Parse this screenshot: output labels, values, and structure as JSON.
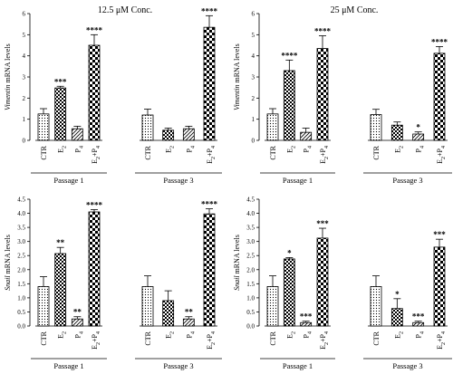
{
  "chart_data": [
    {
      "type": "bar",
      "title": "12.5 μM Conc.",
      "ylabel_italic": "Vimentin",
      "ylabel_rest": " mRNA levels",
      "ylim": [
        0,
        6
      ],
      "yticks": [
        "0",
        "1",
        "2",
        "3",
        "4",
        "5",
        "6"
      ],
      "categories": [
        "CTR",
        "E2",
        "P4",
        "E2+P4"
      ],
      "groups": [
        {
          "name": "Passage 1",
          "values": [
            1.25,
            2.48,
            0.55,
            4.5
          ],
          "errors": [
            0.25,
            0.08,
            0.12,
            0.5
          ],
          "significance": [
            "",
            "***",
            "",
            "****"
          ]
        },
        {
          "name": "Passage 3",
          "values": [
            1.2,
            0.48,
            0.55,
            5.35
          ],
          "errors": [
            0.28,
            0.1,
            0.12,
            0.55
          ],
          "significance": [
            "",
            "",
            "",
            "****"
          ]
        }
      ]
    },
    {
      "type": "bar",
      "title": "25 μM Conc.",
      "ylabel_italic": "Vimentin",
      "ylabel_rest": " mRNA levels",
      "ylim": [
        0,
        6
      ],
      "yticks": [
        "0",
        "1",
        "2",
        "3",
        "4",
        "5",
        "6"
      ],
      "categories": [
        "CTR",
        "E2",
        "P4",
        "E2+P4"
      ],
      "groups": [
        {
          "name": "Passage 1",
          "values": [
            1.25,
            3.3,
            0.38,
            4.35
          ],
          "errors": [
            0.25,
            0.5,
            0.2,
            0.6
          ],
          "significance": [
            "",
            "****",
            "",
            "****"
          ]
        },
        {
          "name": "Passage 3",
          "values": [
            1.22,
            0.72,
            0.3,
            4.12
          ],
          "errors": [
            0.25,
            0.15,
            0.1,
            0.32
          ],
          "significance": [
            "",
            "",
            "*",
            "****"
          ]
        }
      ]
    },
    {
      "type": "bar",
      "title": "",
      "ylabel_italic": "Snail",
      "ylabel_rest": " mRNA levels",
      "ylim": [
        0,
        4.5
      ],
      "yticks": [
        "0.0",
        "0.5",
        "1.0",
        "1.5",
        "2.0",
        "2.5",
        "3.0",
        "3.5",
        "4.0",
        "4.5"
      ],
      "categories": [
        "CTR",
        "E2",
        "P4",
        "E2+P4"
      ],
      "groups": [
        {
          "name": "Passage 1",
          "values": [
            1.4,
            2.57,
            0.25,
            4.05
          ],
          "errors": [
            0.35,
            0.22,
            0.08,
            0.08
          ],
          "significance": [
            "",
            "**",
            "**",
            "****"
          ]
        },
        {
          "name": "Passage 3",
          "values": [
            1.4,
            0.9,
            0.25,
            3.98
          ],
          "errors": [
            0.38,
            0.35,
            0.08,
            0.18
          ],
          "significance": [
            "",
            "",
            "**",
            "****"
          ]
        }
      ]
    },
    {
      "type": "bar",
      "title": "",
      "ylabel_italic": "Snail",
      "ylabel_rest": " mRNA levels",
      "ylim": [
        0,
        4.5
      ],
      "yticks": [
        "0.0",
        "0.5",
        "1.0",
        "1.5",
        "2.0",
        "2.5",
        "3.0",
        "3.5",
        "4.0",
        "4.5"
      ],
      "categories": [
        "CTR",
        "E2",
        "P4",
        "E2+P4"
      ],
      "groups": [
        {
          "name": "Passage 1",
          "values": [
            1.4,
            2.38,
            0.12,
            3.12
          ],
          "errors": [
            0.38,
            0.05,
            0.05,
            0.35
          ],
          "significance": [
            "",
            "*",
            "***",
            "***"
          ]
        },
        {
          "name": "Passage 3",
          "values": [
            1.4,
            0.62,
            0.12,
            2.8
          ],
          "errors": [
            0.38,
            0.35,
            0.05,
            0.28
          ],
          "significance": [
            "",
            "*",
            "***",
            "***"
          ]
        }
      ]
    }
  ]
}
